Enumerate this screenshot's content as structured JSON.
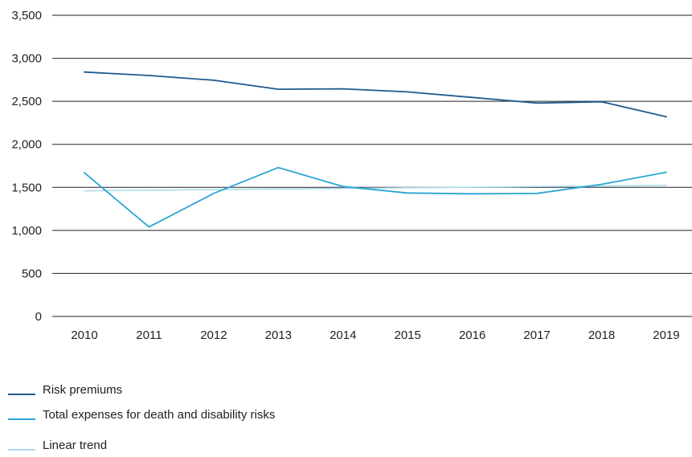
{
  "chart_data": {
    "type": "line",
    "title": "",
    "xlabel": "",
    "ylabel": "",
    "x": [
      "2010",
      "2011",
      "2012",
      "2013",
      "2014",
      "2015",
      "2016",
      "2017",
      "2018",
      "2019"
    ],
    "ylim": [
      0,
      3500
    ],
    "yticks": [
      0,
      500,
      1000,
      1500,
      2000,
      2500,
      3000,
      3500
    ],
    "ytick_labels": [
      "0",
      "500",
      "1,000",
      "1,500",
      "2,000",
      "2,500",
      "3,000",
      "3,500"
    ],
    "grid": true,
    "legend_position": "bottom-left",
    "series": [
      {
        "name": "Risk premiums",
        "color": "#1f5a8c",
        "values": [
          2840,
          2800,
          2745,
          2640,
          2645,
          2610,
          2545,
          2480,
          2495,
          2320
        ]
      },
      {
        "name": "Total expenses for death and disability risks",
        "color": "#2aa6d4",
        "values": [
          1670,
          1040,
          1430,
          1730,
          1510,
          1435,
          1425,
          1430,
          1535,
          1675
        ]
      },
      {
        "name": "Linear trend",
        "color": "#a9d8ec",
        "values": [
          1460,
          1467,
          1474,
          1481,
          1488,
          1495,
          1502,
          1509,
          1516,
          1523
        ]
      }
    ]
  }
}
